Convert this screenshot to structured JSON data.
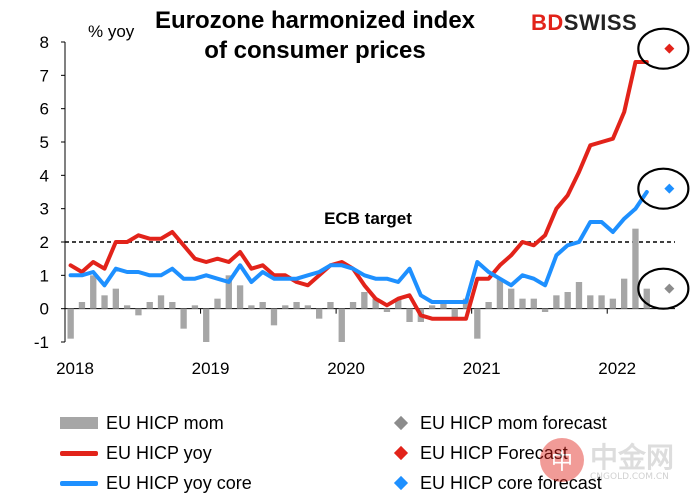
{
  "chart_data": {
    "type": "bar+line",
    "title": "Eurozone harmonized index of consumer prices",
    "ylabel": "% yoy",
    "ylim": [
      -1,
      8
    ],
    "yticks": [
      "-1",
      "0",
      "1",
      "2",
      "3",
      "4",
      "5",
      "6",
      "7",
      "8"
    ],
    "xticks": [
      "2018",
      "2019",
      "2020",
      "2021",
      "2022"
    ],
    "start": "2018-01",
    "annotation": "ECB target",
    "target_value": 2,
    "series": [
      {
        "name": "EU HICP mom",
        "kind": "bar",
        "color": "#a6a6a6",
        "values": [
          -0.9,
          0.2,
          1.0,
          0.4,
          0.6,
          0.1,
          -0.2,
          0.2,
          0.4,
          0.2,
          -0.6,
          0.1,
          -1.0,
          0.3,
          1.0,
          0.7,
          0.1,
          0.2,
          -0.5,
          0.1,
          0.2,
          0.1,
          -0.3,
          0.2,
          -1.0,
          0.2,
          0.5,
          0.3,
          -0.1,
          0.3,
          -0.4,
          -0.4,
          0.1,
          0.2,
          -0.3,
          0.3,
          -0.9,
          0.2,
          0.9,
          0.6,
          0.3,
          0.3,
          -0.1,
          0.4,
          0.5,
          0.8,
          0.4,
          0.4,
          0.3,
          0.9,
          2.4,
          0.6
        ]
      },
      {
        "name": "EU HICP yoy",
        "kind": "line",
        "color": "#e2231a",
        "values": [
          1.3,
          1.1,
          1.4,
          1.2,
          2.0,
          2.0,
          2.2,
          2.1,
          2.1,
          2.3,
          1.9,
          1.5,
          1.4,
          1.5,
          1.4,
          1.7,
          1.2,
          1.3,
          1.0,
          1.0,
          0.8,
          0.7,
          1.0,
          1.3,
          1.4,
          1.2,
          0.7,
          0.3,
          0.1,
          0.3,
          0.4,
          -0.2,
          -0.3,
          -0.3,
          -0.3,
          -0.3,
          0.9,
          0.9,
          1.3,
          1.6,
          2.0,
          1.9,
          2.2,
          3.0,
          3.4,
          4.1,
          4.9,
          5.0,
          5.1,
          5.9,
          7.4,
          7.4
        ]
      },
      {
        "name": "EU HICP yoy core",
        "kind": "line",
        "color": "#1e90ff",
        "values": [
          1.0,
          1.0,
          1.1,
          0.7,
          1.2,
          1.1,
          1.1,
          1.0,
          1.0,
          1.2,
          0.9,
          0.9,
          1.0,
          0.9,
          0.8,
          1.3,
          0.8,
          1.1,
          0.9,
          0.9,
          0.9,
          1.0,
          1.1,
          1.3,
          1.3,
          1.2,
          1.0,
          0.9,
          0.9,
          0.8,
          1.2,
          0.4,
          0.2,
          0.2,
          0.2,
          0.2,
          1.4,
          1.1,
          0.9,
          0.7,
          1.0,
          0.9,
          0.7,
          1.6,
          1.9,
          2.0,
          2.6,
          2.6,
          2.3,
          2.7,
          3.0,
          3.5
        ]
      },
      {
        "name": "EU HICP mom forecast",
        "kind": "point",
        "color": "#8c8c8c",
        "x_index": 53,
        "value": 0.6
      },
      {
        "name": "EU HICP Forecast",
        "kind": "point",
        "color": "#e2231a",
        "x_index": 53,
        "value": 7.8
      },
      {
        "name": "EU HICP core forecast",
        "kind": "point",
        "color": "#1e90ff",
        "x_index": 53,
        "value": 3.6
      }
    ]
  },
  "brand": {
    "part1": "BD",
    "part2": "SWISS"
  },
  "watermark": {
    "glyph": "中",
    "text": "中金网",
    "url": "CNGOLD.COM.CN"
  }
}
